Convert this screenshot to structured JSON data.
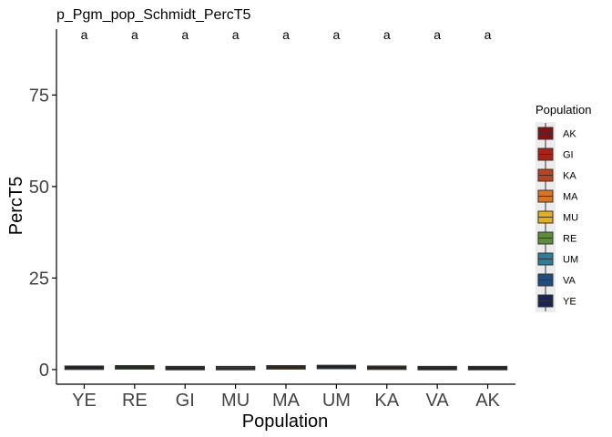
{
  "chart_data": {
    "type": "boxplot",
    "title": "p_Pgm_pop_Schmidt_PercT5",
    "xlabel": "Population",
    "ylabel": "PercT5",
    "categories": [
      "YE",
      "RE",
      "GI",
      "MU",
      "MA",
      "UM",
      "KA",
      "VA",
      "AK"
    ],
    "values": [
      0.5,
      0.6,
      0.4,
      0.4,
      0.6,
      0.7,
      0.5,
      0.4,
      0.4
    ],
    "significance_letters": [
      "a",
      "a",
      "a",
      "a",
      "a",
      "a",
      "a",
      "a",
      "a"
    ],
    "ylim": [
      -4,
      93
    ],
    "yticks": [
      0,
      25,
      50,
      75
    ],
    "ytick_labels": [
      "0",
      "25",
      "50",
      "75"
    ],
    "grid": false,
    "legend": {
      "title": "Population",
      "position": "right",
      "entries": [
        {
          "label": "AK",
          "color": "#8B0E12"
        },
        {
          "label": "GI",
          "color": "#A82216"
        },
        {
          "label": "KA",
          "color": "#C2401A"
        },
        {
          "label": "MA",
          "color": "#D87520"
        },
        {
          "label": "MU",
          "color": "#E9AE12"
        },
        {
          "label": "RE",
          "color": "#5E8C3A"
        },
        {
          "label": "UM",
          "color": "#2A7E9E"
        },
        {
          "label": "VA",
          "color": "#1F4D7E"
        },
        {
          "label": "YE",
          "color": "#1A2457"
        }
      ]
    }
  }
}
